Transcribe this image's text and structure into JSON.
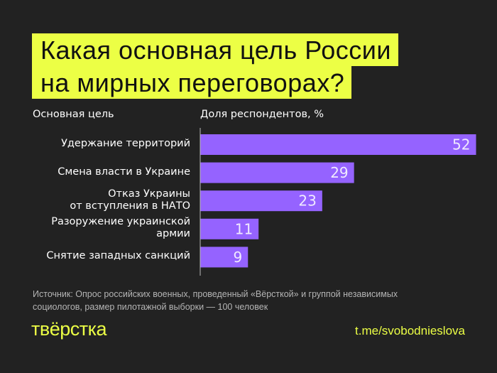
{
  "title": {
    "line1": "Какая основная цель России",
    "line2": "на мирных переговорах?"
  },
  "colors": {
    "background": "#222222",
    "accent": "#ecff45",
    "bar": "#9563ff"
  },
  "chart_data": {
    "type": "bar",
    "orientation": "horizontal",
    "xlabel": "Доля респондентов, %",
    "ylabel": "Основная цель",
    "categories": [
      "Удержание территорий",
      "Смена власти в Украине",
      "Отказ Украины\nот вступления в НАТО",
      "Разоружение украинской\nармии",
      "Снятие западных санкций"
    ],
    "values": [
      52,
      29,
      23,
      11,
      9
    ],
    "data_labels": [
      "52",
      "29",
      "23",
      "11",
      "9"
    ],
    "xlim": [
      0,
      52
    ],
    "grid": false
  },
  "footer": {
    "source": "Источник: Опрос российских военных, проведенный «Вёрсткой» и группой независимых социологов, размер пилотажной выборки — 100 человек",
    "logo": "твёрстка",
    "link": "t.me/svobodnieslova"
  }
}
